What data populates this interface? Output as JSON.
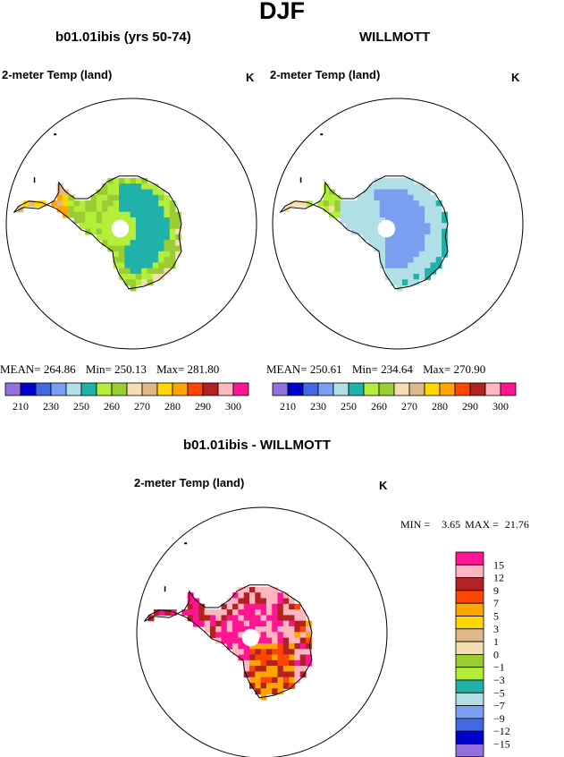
{
  "page_title": "DJF",
  "panels": [
    {
      "title": "b01.01ibis (yrs 50-74)",
      "field": "2-meter Temp (land)",
      "units": "K",
      "stats": {
        "mean_label": "MEAN=",
        "mean": "264.86",
        "min_label": "Min=",
        "min": "250.13",
        "max_label": "Max=",
        "max": "281.80"
      }
    },
    {
      "title": "WILLMOTT",
      "field": "2-meter Temp (land)",
      "units": "K",
      "stats": {
        "mean_label": "MEAN=",
        "mean": "250.61",
        "min_label": "Min=",
        "min": "234.64",
        "max_label": "Max=",
        "max": "270.90"
      }
    },
    {
      "title": "b01.01ibis - WILLMOTT",
      "field": "2-meter Temp (land)",
      "units": "K",
      "stats": {
        "min_label": "MIN =",
        "min": "3.65",
        "max_label": "MAX =",
        "max": "21.76"
      }
    }
  ],
  "colorbar_abs": {
    "colors": [
      "#9370db",
      "#0000cd",
      "#4169e1",
      "#7b9ff0",
      "#b0e0e6",
      "#20b2aa",
      "#b3ee3a",
      "#9acd32",
      "#f5deb3",
      "#deb887",
      "#ffd700",
      "#ffa500",
      "#ff4500",
      "#b22222",
      "#ffb6c1",
      "#ff1493"
    ],
    "labels": [
      "210",
      "230",
      "250",
      "260",
      "270",
      "280",
      "290",
      "300"
    ]
  },
  "colorbar_diff": {
    "colors": [
      "#ff1493",
      "#ffb6c1",
      "#b22222",
      "#ff4500",
      "#ffa500",
      "#ffd700",
      "#deb887",
      "#f5deb3",
      "#9acd32",
      "#b3ee3a",
      "#20b2aa",
      "#b0e0e6",
      "#7b9ff0",
      "#4169e1",
      "#0000cd",
      "#9370db"
    ],
    "labels": [
      "15",
      "12",
      "9",
      "7",
      "5",
      "3",
      "1",
      "0",
      "−1",
      "−3",
      "−5",
      "−7",
      "−9",
      "−12",
      "−15"
    ]
  },
  "chart_data": [
    {
      "type": "heatmap",
      "projection": "south polar stereographic",
      "region": "Antarctica",
      "title": "b01.01ibis (yrs 50-74)",
      "subtitle": "2-meter Temp (land)",
      "units": "K",
      "mean": 264.86,
      "min": 250.13,
      "max": 281.8,
      "colorbar_levels": [
        210,
        230,
        250,
        260,
        270,
        280,
        290,
        300
      ]
    },
    {
      "type": "heatmap",
      "projection": "south polar stereographic",
      "region": "Antarctica",
      "title": "WILLMOTT",
      "subtitle": "2-meter Temp (land)",
      "units": "K",
      "mean": 250.61,
      "min": 234.64,
      "max": 270.9,
      "colorbar_levels": [
        210,
        230,
        250,
        260,
        270,
        280,
        290,
        300
      ]
    },
    {
      "type": "heatmap",
      "projection": "south polar stereographic",
      "region": "Antarctica",
      "title": "b01.01ibis - WILLMOTT",
      "subtitle": "2-meter Temp (land)",
      "units": "K",
      "min": 3.65,
      "max": 21.76,
      "colorbar_levels": [
        15,
        12,
        9,
        7,
        5,
        3,
        1,
        0,
        -1,
        -3,
        -5,
        -7,
        -9,
        -12,
        -15
      ]
    }
  ]
}
